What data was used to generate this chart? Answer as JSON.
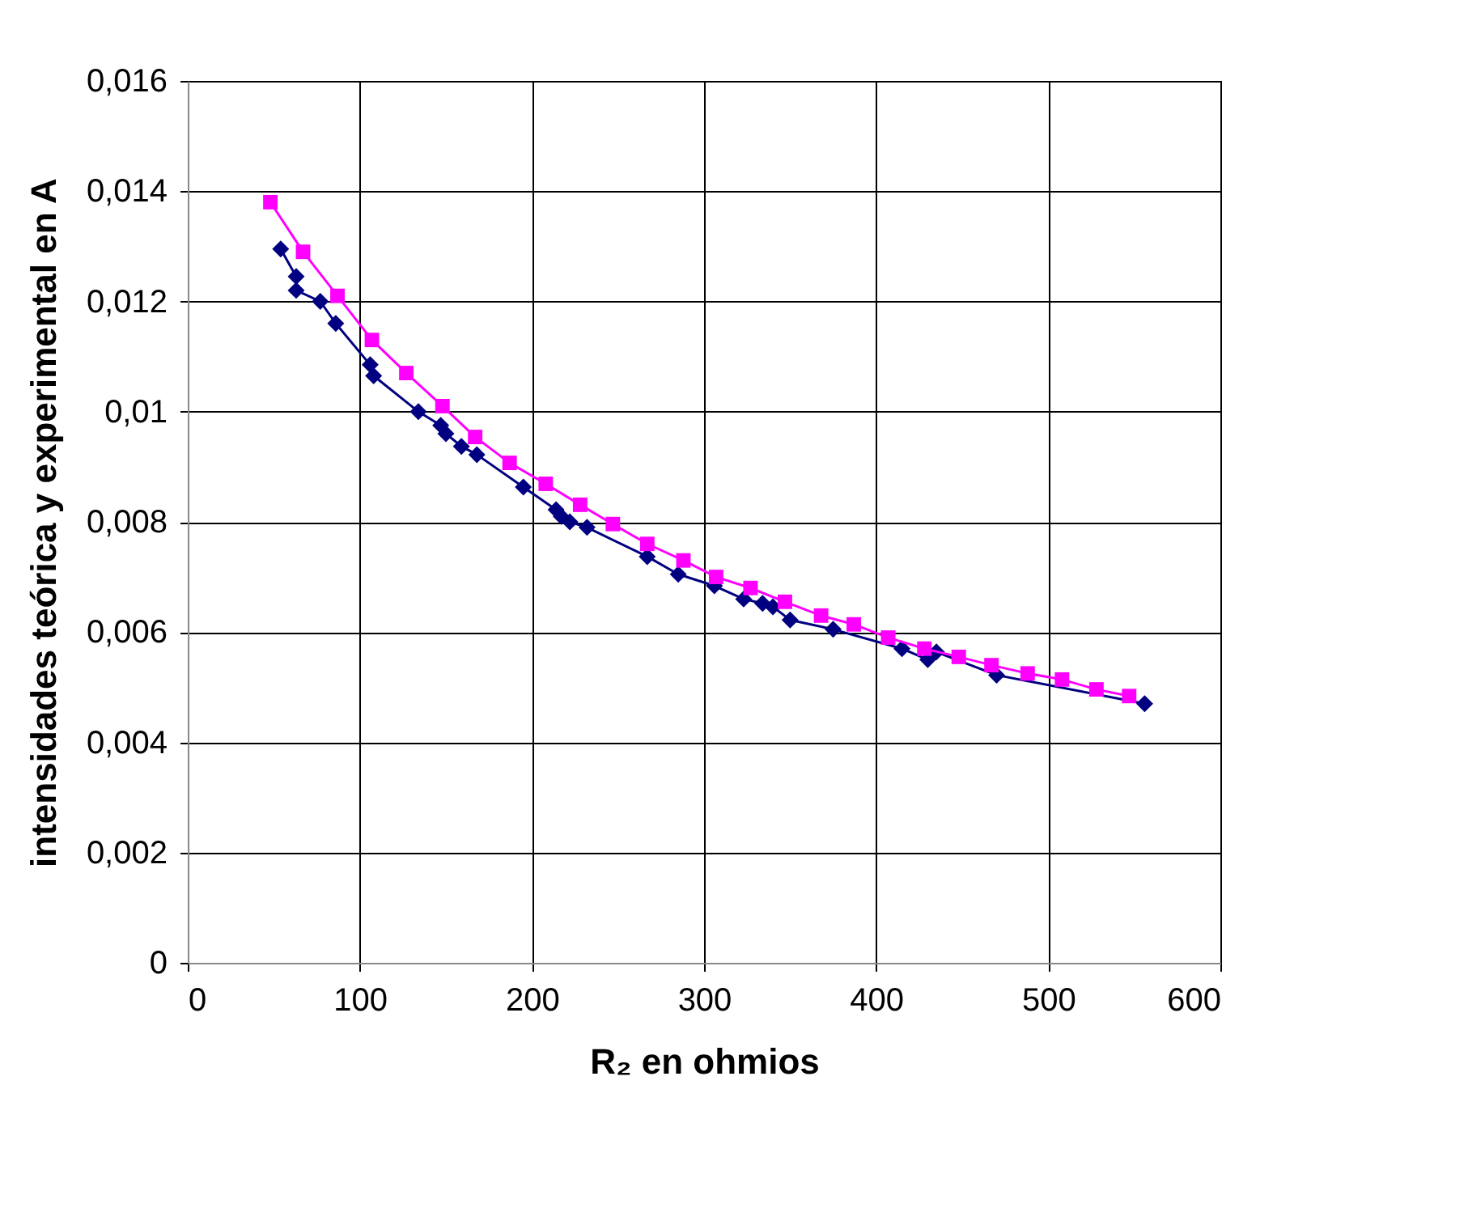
{
  "chart_data": {
    "type": "line",
    "xlabel": "R₂ en ohmios",
    "ylabel": "intensidades teórica y experimental en A",
    "xlim": [
      0,
      600
    ],
    "xticks": [
      0,
      100,
      200,
      300,
      400,
      500,
      600
    ],
    "ylim": [
      0,
      0.016
    ],
    "yticks": [
      {
        "value": 0,
        "label": "0"
      },
      {
        "value": 0.002,
        "label": "0,002"
      },
      {
        "value": 0.004,
        "label": "0,004"
      },
      {
        "value": 0.006,
        "label": "0,006"
      },
      {
        "value": 0.008,
        "label": "0,008"
      },
      {
        "value": 0.01,
        "label": "0,01"
      },
      {
        "value": 0.012,
        "label": "0,012"
      },
      {
        "value": 0.014,
        "label": "0,014"
      },
      {
        "value": 0.016,
        "label": "0,016"
      }
    ],
    "grid": true,
    "legend": false,
    "series": [
      {
        "color": "#000080",
        "marker": "diamond",
        "x": [
          54,
          63,
          63,
          77,
          86,
          106,
          108,
          134,
          147,
          150,
          159,
          168,
          195,
          214,
          217,
          222,
          232,
          267,
          285,
          306,
          323,
          334,
          340,
          350,
          375,
          415,
          430,
          435,
          470,
          556
        ],
        "values": [
          0.01295,
          0.01245,
          0.0122,
          0.012,
          0.0116,
          0.01085,
          0.01065,
          0.01,
          0.00975,
          0.0096,
          0.00937,
          0.00922,
          0.00863,
          0.00822,
          0.0081,
          0.008,
          0.0079,
          0.00737,
          0.00705,
          0.00684,
          0.0066,
          0.00652,
          0.00646,
          0.00622,
          0.00605,
          0.0057,
          0.0055,
          0.00564,
          0.00522,
          0.0047
        ]
      },
      {
        "color": "#ff00ff",
        "marker": "square",
        "x": [
          48,
          67,
          87,
          107,
          127,
          148,
          167,
          187,
          208,
          228,
          247,
          267,
          288,
          307,
          327,
          347,
          368,
          387,
          407,
          428,
          448,
          467,
          488,
          508,
          528,
          547
        ],
        "values": [
          0.0138,
          0.0129,
          0.0121,
          0.0113,
          0.0107,
          0.0101,
          0.00954,
          0.00907,
          0.00869,
          0.00831,
          0.00796,
          0.0076,
          0.0073,
          0.007,
          0.0068,
          0.00655,
          0.0063,
          0.00614,
          0.0059,
          0.0057,
          0.00555,
          0.0054,
          0.00525,
          0.00514,
          0.00496,
          0.00484
        ]
      }
    ]
  }
}
